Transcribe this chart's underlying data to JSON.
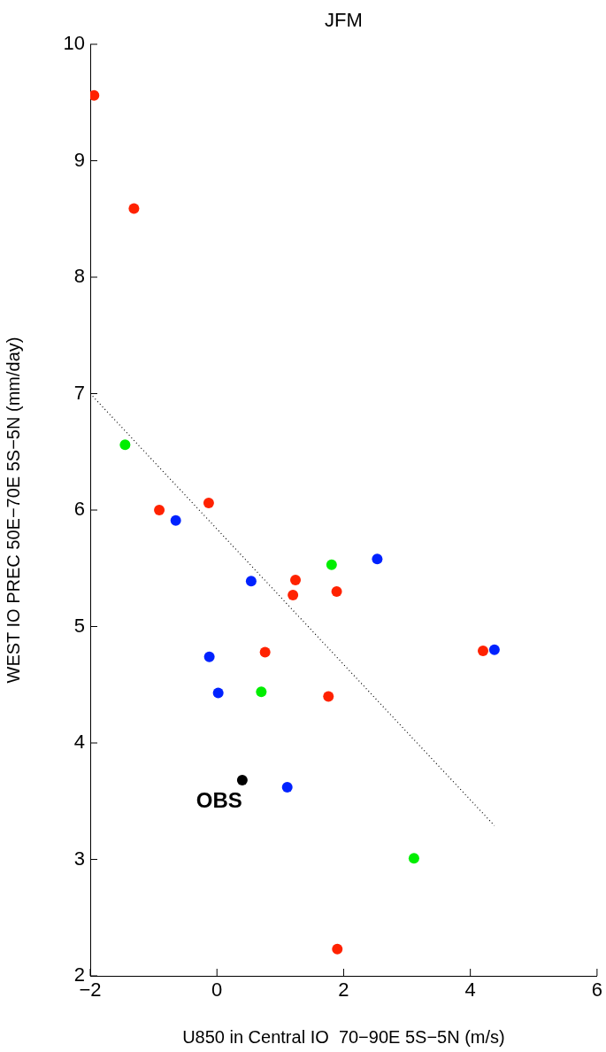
{
  "chart_data": {
    "type": "scatter",
    "title": "JFM",
    "xlabel": "U850 in Central IO  70−90E 5S−5N (m/s)",
    "ylabel": "WEST IO PREC 50E−70E 5S−5N (mm/day)",
    "xlim": [
      -2,
      6
    ],
    "ylim": [
      2,
      10
    ],
    "xticks": [
      {
        "value": -2,
        "label": "−2"
      },
      0,
      2,
      4,
      6
    ],
    "yticks": [
      2,
      3,
      4,
      5,
      6,
      7,
      8,
      9,
      10
    ],
    "grid": false,
    "legend": false,
    "marker": "circle",
    "series": [
      {
        "color": "#ff2200",
        "x": [
          -1.94,
          -1.31,
          -0.91,
          -0.13,
          1.24,
          1.2,
          1.89,
          4.2,
          0.76,
          1.76,
          1.9
        ],
        "values": [
          9.56,
          8.59,
          6.0,
          6.06,
          5.4,
          5.27,
          5.3,
          4.79,
          4.78,
          4.4,
          2.23
        ]
      },
      {
        "color": "#0022ff",
        "x": [
          -0.65,
          0.54,
          2.53,
          4.38,
          -0.12,
          0.02,
          1.11
        ],
        "values": [
          5.91,
          5.39,
          5.58,
          4.8,
          4.74,
          4.43,
          3.62
        ]
      },
      {
        "color": "#00ee00",
        "x": [
          -1.45,
          1.81,
          0.7,
          3.11
        ],
        "values": [
          6.56,
          5.53,
          4.44,
          3.01
        ]
      },
      {
        "color": "#000000",
        "x": [
          0.4
        ],
        "values": [
          3.68
        ]
      },
      {
        "type": "line",
        "color": "#000000",
        "line_style": "dotted",
        "marker": "none",
        "x": [
          -2,
          4.38
        ],
        "values": [
          7,
          3.29
        ]
      }
    ],
    "annotations": [
      {
        "text": "OBS",
        "x": 0.4,
        "y": 3.68
      }
    ]
  }
}
